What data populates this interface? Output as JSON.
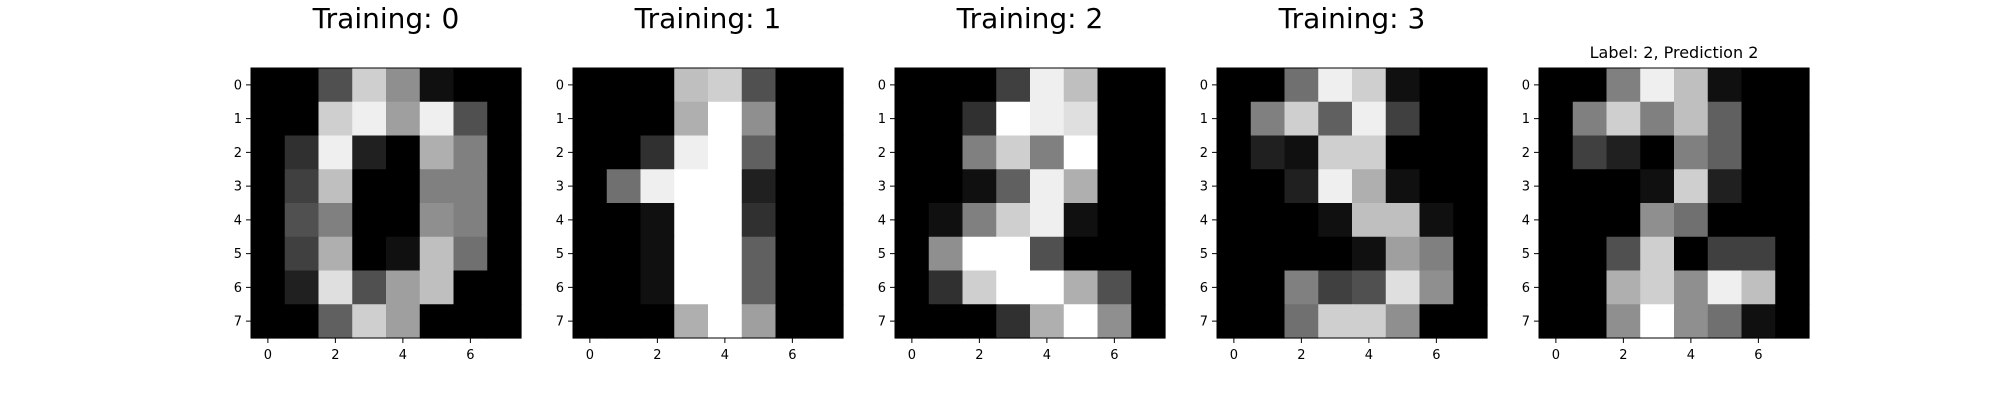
{
  "figure": {
    "background": "#ffffff"
  },
  "chart_data": [
    {
      "type": "heatmap",
      "title": "Training: 0",
      "colormap": "gray",
      "value_range": [
        0,
        16
      ],
      "xticks": [
        0,
        2,
        4,
        6
      ],
      "yticks": [
        0,
        1,
        2,
        3,
        4,
        5,
        6,
        7
      ],
      "xlim": [
        -0.5,
        7.5
      ],
      "ylim": [
        7.5,
        -0.5
      ],
      "grid": false,
      "values": [
        [
          0,
          0,
          5,
          13,
          9,
          1,
          0,
          0
        ],
        [
          0,
          0,
          13,
          15,
          10,
          15,
          5,
          0
        ],
        [
          0,
          3,
          15,
          2,
          0,
          11,
          8,
          0
        ],
        [
          0,
          4,
          12,
          0,
          0,
          8,
          8,
          0
        ],
        [
          0,
          5,
          8,
          0,
          0,
          9,
          8,
          0
        ],
        [
          0,
          4,
          11,
          0,
          1,
          12,
          7,
          0
        ],
        [
          0,
          2,
          14,
          5,
          10,
          12,
          0,
          0
        ],
        [
          0,
          0,
          6,
          13,
          10,
          0,
          0,
          0
        ]
      ]
    },
    {
      "type": "heatmap",
      "title": "Training: 1",
      "colormap": "gray",
      "value_range": [
        0,
        16
      ],
      "xticks": [
        0,
        2,
        4,
        6
      ],
      "yticks": [
        0,
        1,
        2,
        3,
        4,
        5,
        6,
        7
      ],
      "xlim": [
        -0.5,
        7.5
      ],
      "ylim": [
        7.5,
        -0.5
      ],
      "grid": false,
      "values": [
        [
          0,
          0,
          0,
          12,
          13,
          5,
          0,
          0
        ],
        [
          0,
          0,
          0,
          11,
          16,
          9,
          0,
          0
        ],
        [
          0,
          0,
          3,
          15,
          16,
          6,
          0,
          0
        ],
        [
          0,
          7,
          15,
          16,
          16,
          2,
          0,
          0
        ],
        [
          0,
          0,
          1,
          16,
          16,
          3,
          0,
          0
        ],
        [
          0,
          0,
          1,
          16,
          16,
          6,
          0,
          0
        ],
        [
          0,
          0,
          1,
          16,
          16,
          6,
          0,
          0
        ],
        [
          0,
          0,
          0,
          11,
          16,
          10,
          0,
          0
        ]
      ]
    },
    {
      "type": "heatmap",
      "title": "Training: 2",
      "colormap": "gray",
      "value_range": [
        0,
        16
      ],
      "xticks": [
        0,
        2,
        4,
        6
      ],
      "yticks": [
        0,
        1,
        2,
        3,
        4,
        5,
        6,
        7
      ],
      "xlim": [
        -0.5,
        7.5
      ],
      "ylim": [
        7.5,
        -0.5
      ],
      "grid": false,
      "values": [
        [
          0,
          0,
          0,
          4,
          15,
          12,
          0,
          0
        ],
        [
          0,
          0,
          3,
          16,
          15,
          14,
          0,
          0
        ],
        [
          0,
          0,
          8,
          13,
          8,
          16,
          0,
          0
        ],
        [
          0,
          0,
          1,
          6,
          15,
          11,
          0,
          0
        ],
        [
          0,
          1,
          8,
          13,
          15,
          1,
          0,
          0
        ],
        [
          0,
          9,
          16,
          16,
          5,
          0,
          0,
          0
        ],
        [
          0,
          3,
          13,
          16,
          16,
          11,
          5,
          0
        ],
        [
          0,
          0,
          0,
          3,
          11,
          16,
          9,
          0
        ]
      ]
    },
    {
      "type": "heatmap",
      "title": "Training: 3",
      "colormap": "gray",
      "value_range": [
        0,
        16
      ],
      "xticks": [
        0,
        2,
        4,
        6
      ],
      "yticks": [
        0,
        1,
        2,
        3,
        4,
        5,
        6,
        7
      ],
      "xlim": [
        -0.5,
        7.5
      ],
      "ylim": [
        7.5,
        -0.5
      ],
      "grid": false,
      "values": [
        [
          0,
          0,
          7,
          15,
          13,
          1,
          0,
          0
        ],
        [
          0,
          8,
          13,
          6,
          15,
          4,
          0,
          0
        ],
        [
          0,
          2,
          1,
          13,
          13,
          0,
          0,
          0
        ],
        [
          0,
          0,
          2,
          15,
          11,
          1,
          0,
          0
        ],
        [
          0,
          0,
          0,
          1,
          12,
          12,
          1,
          0
        ],
        [
          0,
          0,
          0,
          0,
          1,
          10,
          8,
          0
        ],
        [
          0,
          0,
          8,
          4,
          5,
          14,
          9,
          0
        ],
        [
          0,
          0,
          7,
          13,
          13,
          9,
          0,
          0
        ]
      ]
    },
    {
      "type": "heatmap",
      "title": "Label: 2, Prediction 2",
      "colormap": "gray",
      "value_range": [
        0,
        16
      ],
      "xticks": [
        0,
        2,
        4,
        6
      ],
      "yticks": [
        0,
        1,
        2,
        3,
        4,
        5,
        6,
        7
      ],
      "xlim": [
        -0.5,
        7.5
      ],
      "ylim": [
        7.5,
        -0.5
      ],
      "grid": false,
      "values": [
        [
          0,
          0,
          8,
          15,
          12,
          1,
          0,
          0
        ],
        [
          0,
          8,
          13,
          8,
          12,
          6,
          0,
          0
        ],
        [
          0,
          4,
          2,
          0,
          8,
          6,
          0,
          0
        ],
        [
          0,
          0,
          0,
          1,
          13,
          2,
          0,
          0
        ],
        [
          0,
          0,
          0,
          9,
          7,
          0,
          0,
          0
        ],
        [
          0,
          0,
          5,
          13,
          0,
          4,
          4,
          0
        ],
        [
          0,
          0,
          11,
          13,
          9,
          15,
          12,
          0
        ],
        [
          0,
          0,
          9,
          16,
          9,
          7,
          1,
          0
        ]
      ]
    }
  ]
}
